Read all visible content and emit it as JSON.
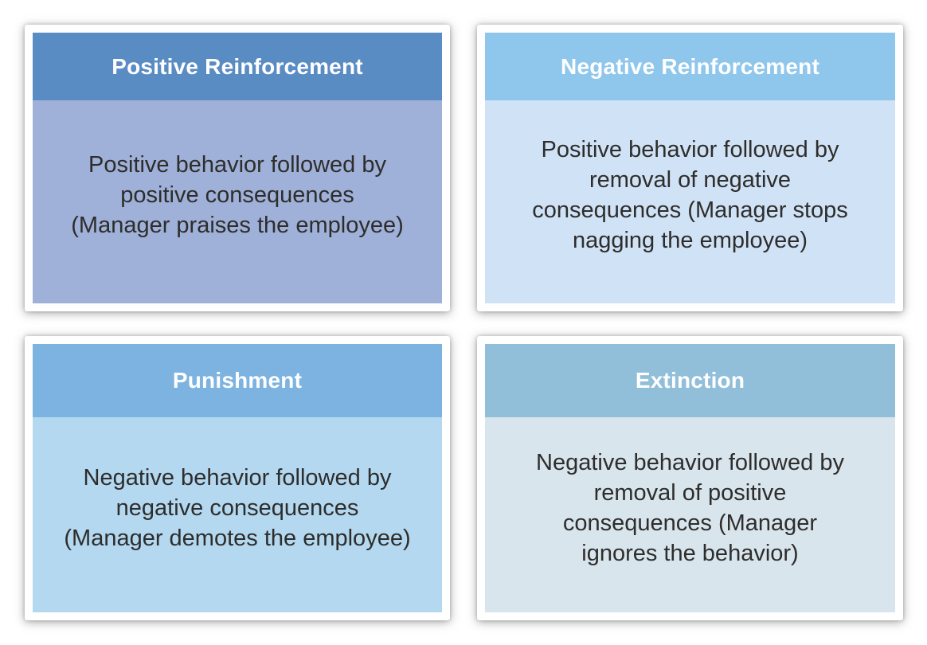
{
  "page": {
    "background_color": "#ffffff",
    "description": "2x2 matrix of operant conditioning methods used by managers"
  },
  "cards": [
    {
      "id": "positive-reinforcement",
      "title": "Positive Reinforcement",
      "body": "Positive behavior followed by positive consequences (Manager praises the employee)",
      "lines": [
        "Positive behavior followed by",
        "positive consequences",
        "(Manager praises the employee)"
      ],
      "header_color": "#5a8cc4",
      "body_color": "#9fb1d8",
      "title_color": "#ffffff",
      "text_color": "#2e2d2c"
    },
    {
      "id": "negative-reinforcement",
      "title": "Negative Reinforcement",
      "body": "Positive behavior followed by removal of negative consequences (Manager stops nagging the employee)",
      "lines": [
        "Positive behavior followed by",
        "removal of negative",
        "consequences (Manager stops",
        "nagging the employee)"
      ],
      "header_color": "#8fc6ec",
      "body_color": "#d0e2f5",
      "title_color": "#ffffff",
      "text_color": "#2e2d2c"
    },
    {
      "id": "punishment",
      "title": "Punishment",
      "body": "Negative behavior followed by negative consequences (Manager demotes the employee)",
      "lines": [
        "Negative behavior followed by",
        "negative consequences",
        "(Manager demotes the employee)"
      ],
      "header_color": "#7db3e0",
      "body_color": "#b3d8ef",
      "title_color": "#ffffff",
      "text_color": "#2e2d2c"
    },
    {
      "id": "extinction",
      "title": "Extinction",
      "body": "Negative behavior followed by removal of positive consequences (Manager ignores the behavior)",
      "lines": [
        "Negative behavior followed by",
        "removal of positive",
        "consequences (Manager",
        "ignores the behavior)"
      ],
      "header_color": "#91bfd9",
      "body_color": "#d8e5ed",
      "title_color": "#ffffff",
      "text_color": "#2e2d2c"
    }
  ]
}
